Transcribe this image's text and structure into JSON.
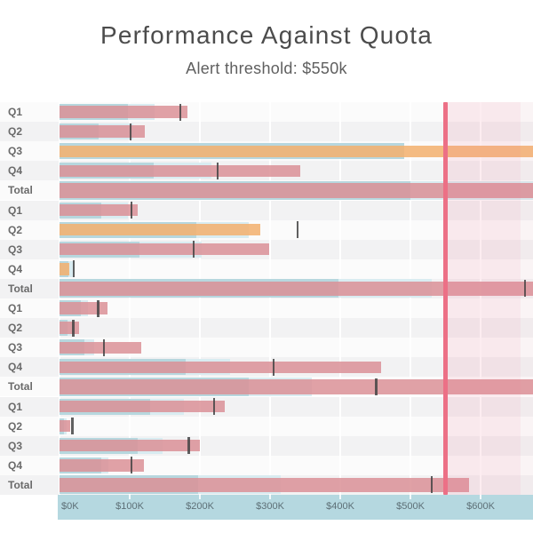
{
  "title": "Performance Against Quota",
  "subtitle": "Alert threshold: $550k",
  "colors": {
    "band_inner": "#b7d7de",
    "band_outer": "#d9ecf1",
    "bar_normal": "rgba(219,144,150,0.85)",
    "bar_alert": "rgba(242,178,113,0.88)",
    "target_tick": "rgba(68,68,68,0.85)",
    "threshold_line": "#ec7086",
    "alert_zone_strong": "rgba(236,110,138,0.12)",
    "alert_zone_light": "rgba(236,110,138,0.05)",
    "axis_strip_bg": "#b5d8e0",
    "axis_text": "#5d6f76",
    "stripe_even": "#fbfbfb",
    "stripe_odd": "#f2f2f3",
    "title_text": "#4c4c4c",
    "subtitle_text": "#5f5f5f",
    "row_label_text": "#6a6a6a"
  },
  "chart_data": {
    "type": "bar",
    "subtype": "bullet-graph",
    "orientation": "horizontal",
    "title": "Performance Against Quota",
    "annotation": "Alert threshold: $550k",
    "threshold_value_k": 550,
    "x_axis": {
      "unit": "USD thousands",
      "tick_labels": [
        "$0K",
        "$100K",
        "$200K",
        "$300K",
        "$400K",
        "$500K",
        "$600K"
      ],
      "tick_values": [
        0,
        100,
        200,
        300,
        400,
        500,
        600
      ],
      "visible_max": 675,
      "gridlines": true
    },
    "legend": "none",
    "note": "values in $k; clipped=true means the mark runs past the right edge of the visible plot",
    "groups": [
      {
        "rows": [
          {
            "label": "Q1",
            "band_inner": 98,
            "band_outer": 136,
            "value": 182,
            "target": 172,
            "alert": false,
            "clipped": false
          },
          {
            "label": "Q2",
            "band_inner": 56,
            "band_outer": 105,
            "value": 122,
            "target": 101,
            "alert": false,
            "clipped": false
          },
          {
            "label": "Q3",
            "band_inner": 491,
            "band_outer": 491,
            "value": 700,
            "target": null,
            "alert": true,
            "clipped": true
          },
          {
            "label": "Q4",
            "band_inner": 134,
            "band_outer": 216,
            "value": 343,
            "target": 225,
            "alert": false,
            "clipped": false
          },
          {
            "label": "Total",
            "band_inner": 500,
            "band_outer": 700,
            "value": 700,
            "target": null,
            "alert": false,
            "clipped": true
          }
        ]
      },
      {
        "rows": [
          {
            "label": "Q1",
            "band_inner": 59,
            "band_outer": 97,
            "value": 111,
            "target": 102,
            "alert": false,
            "clipped": false
          },
          {
            "label": "Q2",
            "band_inner": 195,
            "band_outer": 269,
            "value": 286,
            "target": 339,
            "alert": true,
            "clipped": false
          },
          {
            "label": "Q3",
            "band_inner": 114,
            "band_outer": 203,
            "value": 299,
            "target": 191,
            "alert": false,
            "clipped": false
          },
          {
            "label": "Q4",
            "band_inner": 13,
            "band_outer": 22,
            "value": 14,
            "target": 20,
            "alert": true,
            "clipped": false
          },
          {
            "label": "Total",
            "band_inner": 397,
            "band_outer": 530,
            "value": 700,
            "target": 663,
            "alert": false,
            "clipped": true
          }
        ]
      },
      {
        "rows": [
          {
            "label": "Q1",
            "band_inner": 31,
            "band_outer": 41,
            "value": 68,
            "target": 55,
            "alert": false,
            "clipped": false
          },
          {
            "label": "Q2",
            "band_inner": 11,
            "band_outer": 16,
            "value": 28,
            "target": 19,
            "alert": false,
            "clipped": false
          },
          {
            "label": "Q3",
            "band_inner": 36,
            "band_outer": 49,
            "value": 116,
            "target": 63,
            "alert": false,
            "clipped": false
          },
          {
            "label": "Q4",
            "band_inner": 180,
            "band_outer": 243,
            "value": 458,
            "target": 305,
            "alert": false,
            "clipped": false
          },
          {
            "label": "Total",
            "band_inner": 270,
            "band_outer": 360,
            "value": 700,
            "target": 451,
            "alert": false,
            "clipped": true
          }
        ]
      },
      {
        "rows": [
          {
            "label": "Q1",
            "band_inner": 129,
            "band_outer": 177,
            "value": 235,
            "target": 220,
            "alert": false,
            "clipped": false
          },
          {
            "label": "Q2",
            "band_inner": 6,
            "band_outer": 10,
            "value": 15,
            "target": 18,
            "alert": false,
            "clipped": false
          },
          {
            "label": "Q3",
            "band_inner": 111,
            "band_outer": 147,
            "value": 200,
            "target": 184,
            "alert": false,
            "clipped": false
          },
          {
            "label": "Q4",
            "band_inner": 60,
            "band_outer": 70,
            "value": 120,
            "target": 102,
            "alert": false,
            "clipped": false
          },
          {
            "label": "Total",
            "band_inner": 198,
            "band_outer": 315,
            "value": 583,
            "target": 530,
            "alert": false,
            "clipped": false
          }
        ]
      }
    ]
  }
}
